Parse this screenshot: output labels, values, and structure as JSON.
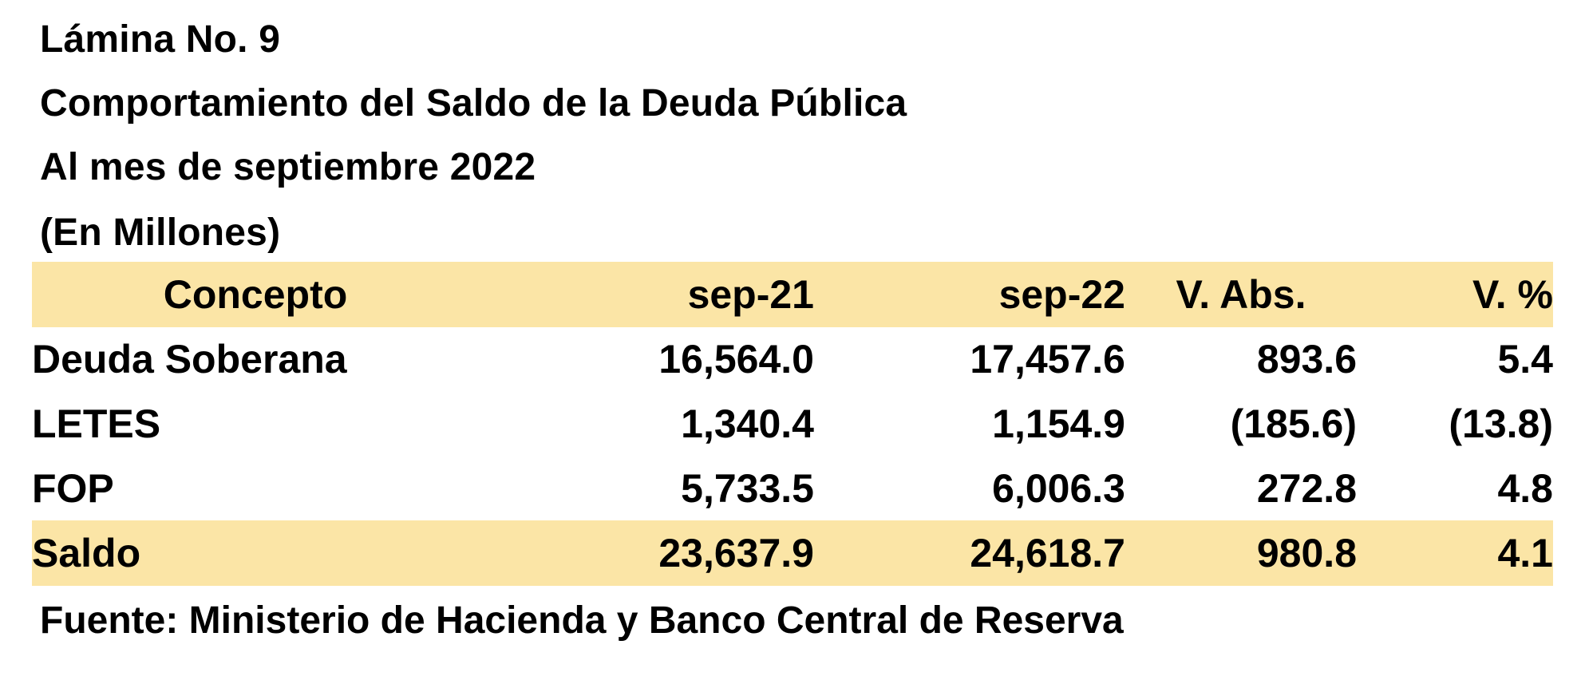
{
  "title": {
    "line1": "Lámina No. 9",
    "line2": "Comportamiento del Saldo de la Deuda Pública",
    "line3": "Al mes de septiembre 2022",
    "line4": "(En Millones)"
  },
  "table": {
    "headers": [
      "Concepto",
      "sep-21",
      "sep-22",
      "V. Abs.",
      "V. %"
    ],
    "rows": [
      {
        "concepto": "Deuda Soberana",
        "sep21": "16,564.0",
        "sep22": "17,457.6",
        "vabs": "893.6",
        "vpct": "5.4"
      },
      {
        "concepto": "LETES",
        "sep21": "1,340.4",
        "sep22": "1,154.9",
        "vabs": "(185.6)",
        "vpct": "(13.8)"
      },
      {
        "concepto": "FOP",
        "sep21": "5,733.5",
        "sep22": "6,006.3",
        "vabs": "272.8",
        "vpct": "4.8"
      }
    ],
    "total": {
      "concepto": "Saldo",
      "sep21": "23,637.9",
      "sep22": "24,618.7",
      "vabs": "980.8",
      "vpct": "4.1"
    }
  },
  "source": "Fuente: Ministerio de Hacienda y Banco Central de Reserva",
  "colors": {
    "highlight": "#fbe5a6",
    "text": "#000000",
    "background": "#ffffff"
  }
}
